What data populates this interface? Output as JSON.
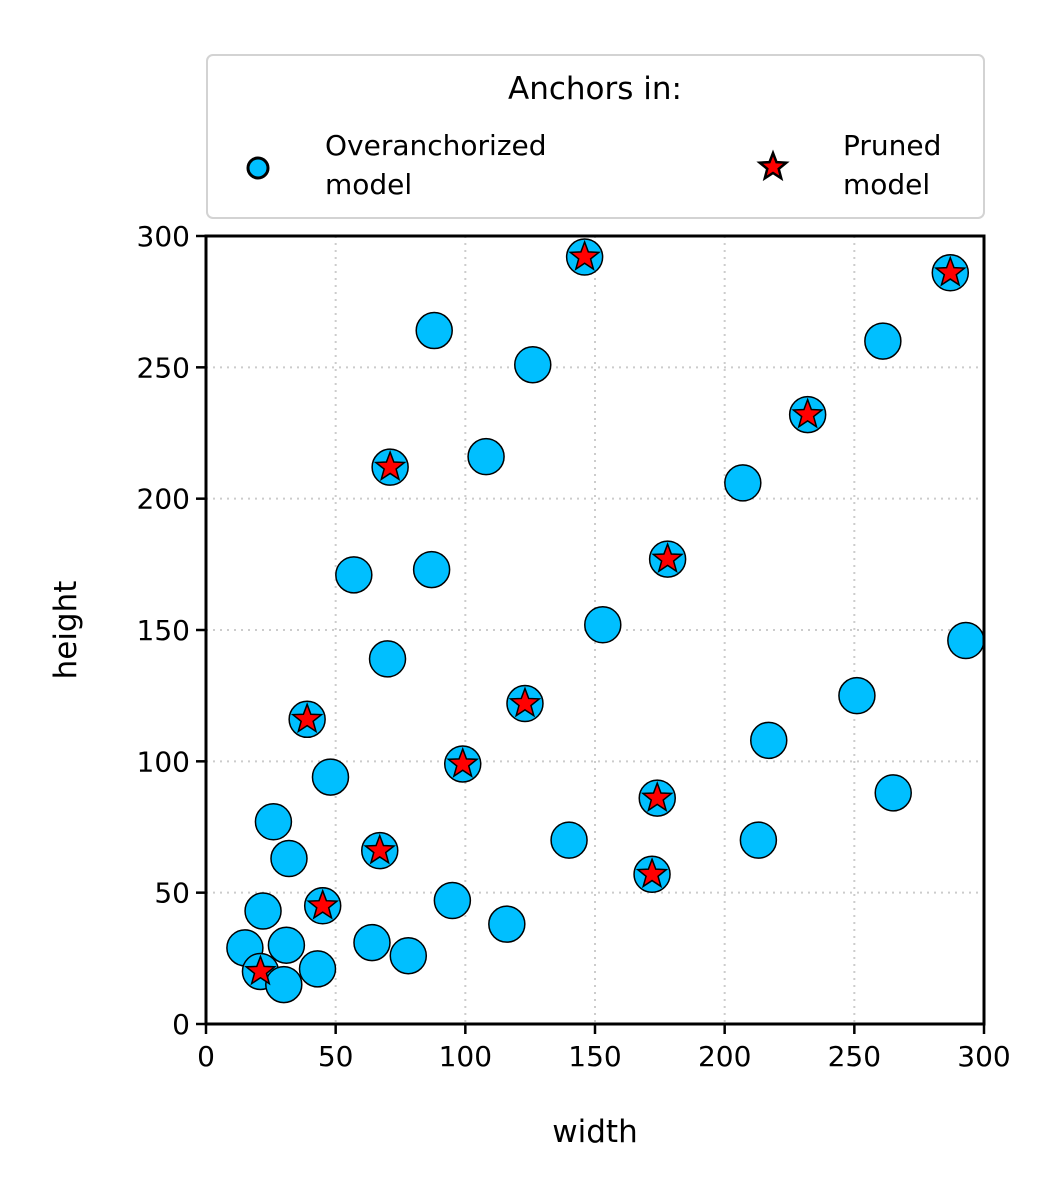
{
  "chart_data": {
    "type": "scatter",
    "xlabel": "width",
    "ylabel": "height",
    "xlim": [
      0,
      300
    ],
    "ylim": [
      0,
      300
    ],
    "xticks": [
      0,
      50,
      100,
      150,
      200,
      250,
      300
    ],
    "yticks": [
      0,
      50,
      100,
      150,
      200,
      250,
      300
    ],
    "grid": true,
    "legend": {
      "title": "Anchors in:",
      "placement": "top, above plot",
      "entries": [
        {
          "label_line1": "Overanchorized",
          "label_line2": "model"
        },
        {
          "label_line1": "Pruned",
          "label_line2": "model"
        }
      ]
    },
    "series": [
      {
        "name": "Overanchorized model",
        "marker": "circle",
        "color": "#00bfff",
        "points": [
          [
            15,
            29
          ],
          [
            21,
            20
          ],
          [
            22,
            43
          ],
          [
            26,
            77
          ],
          [
            30,
            15
          ],
          [
            31,
            30
          ],
          [
            32,
            63
          ],
          [
            39,
            116
          ],
          [
            43,
            21
          ],
          [
            45,
            45
          ],
          [
            48,
            94
          ],
          [
            57,
            171
          ],
          [
            64,
            31
          ],
          [
            67,
            66
          ],
          [
            70,
            139
          ],
          [
            71,
            212
          ],
          [
            78,
            26
          ],
          [
            87,
            173
          ],
          [
            88,
            264
          ],
          [
            95,
            47
          ],
          [
            99,
            99
          ],
          [
            108,
            216
          ],
          [
            116,
            38
          ],
          [
            123,
            122
          ],
          [
            126,
            251
          ],
          [
            140,
            70
          ],
          [
            146,
            292
          ],
          [
            153,
            152
          ],
          [
            172,
            57
          ],
          [
            174,
            86
          ],
          [
            178,
            177
          ],
          [
            207,
            206
          ],
          [
            213,
            70
          ],
          [
            217,
            108
          ],
          [
            232,
            232
          ],
          [
            251,
            125
          ],
          [
            261,
            260
          ],
          [
            265,
            88
          ],
          [
            287,
            286
          ],
          [
            293,
            146
          ]
        ]
      },
      {
        "name": "Pruned model",
        "marker": "star",
        "color": "#ff0000",
        "points": [
          [
            21,
            20
          ],
          [
            39,
            116
          ],
          [
            45,
            45
          ],
          [
            67,
            66
          ],
          [
            71,
            212
          ],
          [
            99,
            99
          ],
          [
            123,
            122
          ],
          [
            146,
            292
          ],
          [
            172,
            57
          ],
          [
            174,
            86
          ],
          [
            178,
            177
          ],
          [
            232,
            232
          ],
          [
            287,
            286
          ]
        ]
      }
    ]
  }
}
